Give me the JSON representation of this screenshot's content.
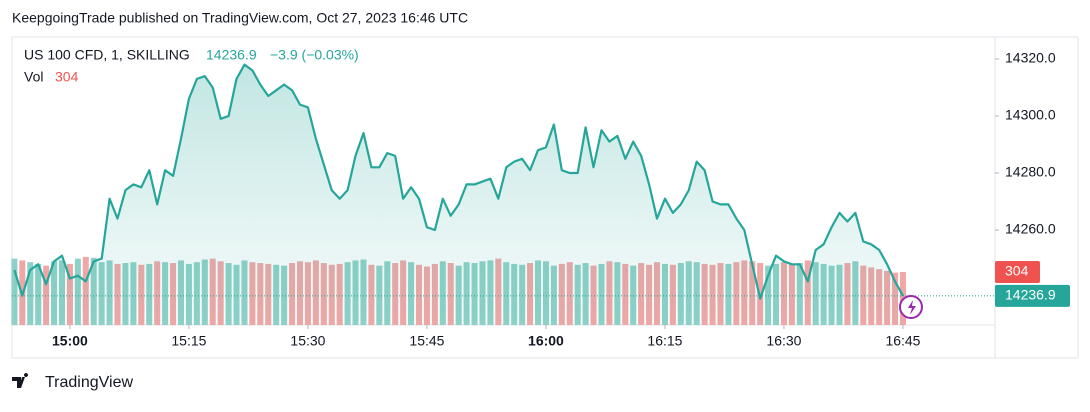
{
  "header": "KeepgoingTrade published on TradingView.com, Oct 27, 2023 16:46 UTC",
  "footer": "TradingView",
  "chart_data": {
    "type": "line",
    "change": "−3.9 (−0.03%)",
    "x": [
      893,
      894,
      895,
      896,
      897,
      898,
      899,
      900,
      901,
      902,
      903,
      904,
      905,
      906,
      907,
      908,
      909,
      910,
      911,
      912,
      913,
      914,
      915,
      916,
      917,
      918,
      919,
      920,
      921,
      922,
      923,
      924,
      925,
      926,
      927,
      928,
      929,
      930,
      931,
      932,
      933,
      934,
      935,
      936,
      937,
      938,
      939,
      940,
      941,
      942,
      943,
      944,
      945,
      946,
      947,
      948,
      949,
      950,
      951,
      952,
      953,
      954,
      955,
      956,
      957,
      958,
      959,
      960,
      961,
      962,
      963,
      964,
      965,
      966,
      967,
      968,
      969,
      970,
      971,
      972,
      973,
      974,
      975,
      976,
      977,
      978,
      979,
      980,
      981,
      982,
      983,
      984,
      985,
      986,
      987,
      988,
      989,
      990,
      991,
      992,
      993,
      994,
      995,
      996,
      997,
      998,
      999,
      1000,
      1001,
      1002,
      1003,
      1004,
      1005
    ],
    "xlim": [
      892.7,
      1016.6
    ],
    "xticks": [
      {
        "value": 900,
        "label": "15:00"
      },
      {
        "value": 915,
        "label": "15:15"
      },
      {
        "value": 930,
        "label": "15:30"
      },
      {
        "value": 945,
        "label": "15:45"
      },
      {
        "value": 960,
        "label": "16:00"
      },
      {
        "value": 975,
        "label": "16:15"
      },
      {
        "value": 990,
        "label": "16:30"
      },
      {
        "value": 1005,
        "label": "16:45"
      }
    ],
    "ylim": [
      14226.7,
      14327.7
    ],
    "yticks": [
      {
        "value": 14260,
        "label": "14260.0"
      },
      {
        "value": 14280,
        "label": "14280.0"
      },
      {
        "value": 14300,
        "label": "14300.0"
      },
      {
        "value": 14320,
        "label": "14320.0"
      }
    ],
    "y2lim": [
      0,
      1650
    ],
    "series": [
      {
        "name": "US 100 CFD, 1, SKILLING",
        "color": "#26a69a",
        "values": [
          14246,
          14237,
          14246,
          14248,
          14241,
          14249,
          14251,
          14243,
          14244,
          14242,
          14249,
          14250,
          14271,
          14264,
          14274,
          14276,
          14275,
          14281,
          14269,
          14281,
          14279,
          14292,
          14306,
          14313,
          14314,
          14310,
          14299,
          14300,
          14313,
          14318,
          14316,
          14311,
          14307,
          14309,
          14311,
          14309,
          14304,
          14303,
          14292,
          14283,
          14274,
          14271,
          14274,
          14286,
          14294,
          14282,
          14282,
          14287,
          14286,
          14271,
          14275,
          14271,
          14261,
          14260,
          14271,
          14265,
          14269,
          14276,
          14276,
          14277,
          14278,
          14271,
          14282,
          14284,
          14285,
          14281,
          14288,
          14289,
          14297,
          14281,
          14280,
          14280,
          14296,
          14282,
          14295,
          14291,
          14293,
          14285,
          14291,
          14286,
          14276,
          14264,
          14271,
          14266,
          14269,
          14274,
          14284,
          14281,
          14270,
          14269,
          14269,
          14264,
          14260,
          14248,
          14236,
          14244,
          14251,
          14249,
          14248,
          14248,
          14242,
          14253,
          14255,
          14261,
          14266,
          14263,
          14266,
          14256,
          14255,
          14253,
          14248,
          14242,
          14236.9
        ]
      },
      {
        "name": "Vol",
        "axis": "y2",
        "up_color": "#8fd1c8",
        "down_color": "#f2a7a7",
        "label_color": "#ef5350",
        "values": [
          380,
          370,
          360,
          350,
          340,
          365,
          370,
          350,
          380,
          390,
          385,
          360,
          370,
          350,
          355,
          360,
          345,
          350,
          365,
          360,
          355,
          370,
          350,
          360,
          375,
          380,
          365,
          355,
          345,
          370,
          360,
          355,
          350,
          345,
          340,
          355,
          365,
          360,
          370,
          355,
          345,
          350,
          360,
          370,
          375,
          345,
          340,
          365,
          355,
          370,
          360,
          345,
          335,
          350,
          365,
          355,
          340,
          360,
          355,
          365,
          370,
          380,
          360,
          350,
          345,
          355,
          370,
          365,
          340,
          350,
          360,
          345,
          355,
          340,
          350,
          365,
          360,
          350,
          340,
          355,
          345,
          360,
          350,
          345,
          355,
          365,
          360,
          350,
          345,
          355,
          350,
          360,
          370,
          365,
          355,
          340,
          350,
          360,
          345,
          355,
          370,
          360,
          350,
          340,
          345,
          355,
          365,
          340,
          330,
          320,
          310,
          300,
          304
        ]
      }
    ]
  }
}
